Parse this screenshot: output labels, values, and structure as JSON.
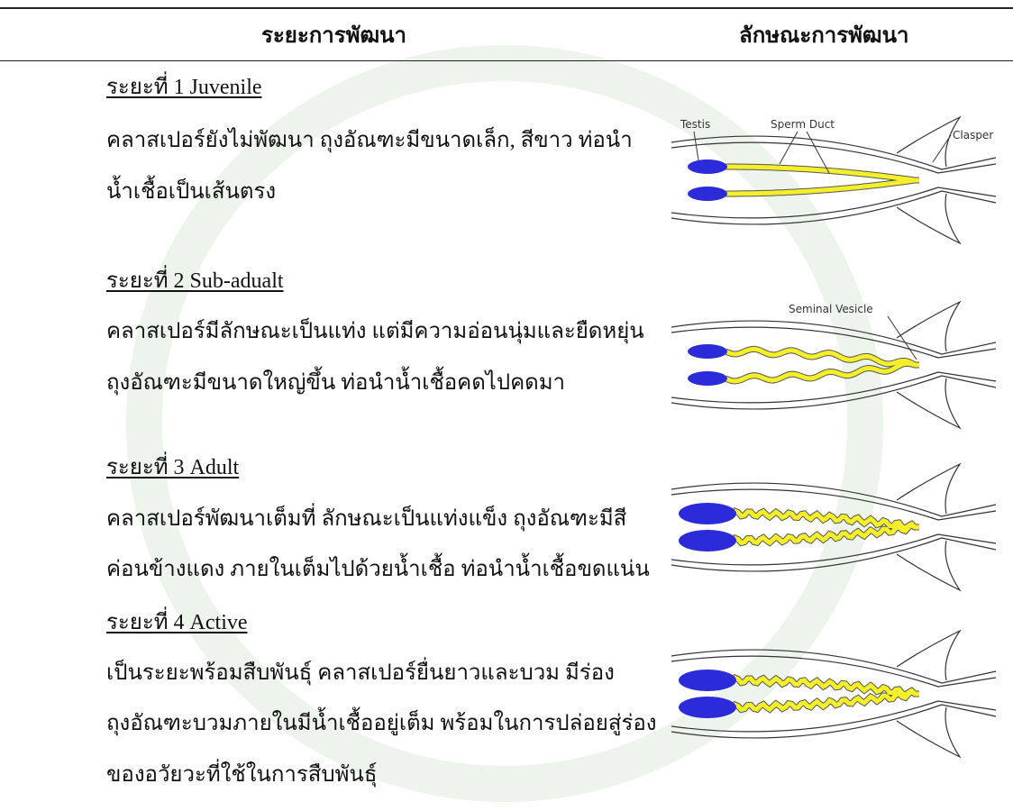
{
  "header": {
    "columns": [
      "ระยะการพัฒนา",
      "ลักษณะการพัฒนา"
    ]
  },
  "stages": [
    {
      "title": "ระยะที่ 1 Juvenile",
      "lines": [
        "คลาสเปอร์ยังไม่พัฒนา ถุงอัณฑะมีขนาดเล็ก, สีขาว ท่อนำ",
        "น้ำเชื้อเป็นเส้นตรง"
      ]
    },
    {
      "title": "ระยะที่ 2 Sub-adualt",
      "lines": [
        "คลาสเปอร์มีลักษณะเป็นแท่ง แต่มีความอ่อนนุ่มและยืดหยุ่น",
        "ถุงอัณฑะมีขนาดใหญ่ขึ้น ท่อนำน้ำเชื้อคดไปคดมา"
      ]
    },
    {
      "title": "ระยะที่ 3 Adult",
      "lines": [
        "คลาสเปอร์พัฒนาเต็มที่ ลักษณะเป็นแท่งแข็ง ถุงอัณฑะมีสี",
        "ค่อนข้างแดง ภายในเต็มไปด้วยน้ำเชื้อ ท่อนำน้ำเชื้อขดแน่น"
      ]
    },
    {
      "title": "ระยะที่ 4 Active",
      "lines": [
        "เป็นระยะพร้อมสืบพันธุ์ คลาสเปอร์ยื่นยาวและบวม มีร่อง",
        "ถุงอัณฑะบวมภายในมีน้ำเชื้ออยู่เต็ม พร้อมในการปล่อยสู่ร่อง",
        "ของอวัยวะที่ใช้ในการสืบพันธุ์"
      ]
    }
  ],
  "figure_labels": {
    "testis": "Testis",
    "sperm_duct": "Sperm Duct",
    "clasper": "Clasper",
    "seminal_vesicle": "Seminal Vesicle"
  }
}
